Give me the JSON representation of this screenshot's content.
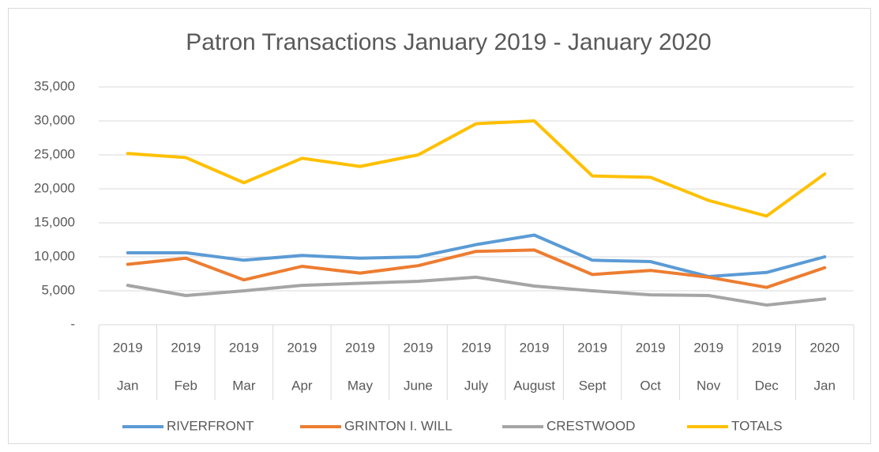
{
  "chart_data": {
    "type": "line",
    "title": "Patron Transactions January 2019 - January 2020",
    "categories": [
      "Jan",
      "Feb",
      "Mar",
      "Apr",
      "May",
      "June",
      "July",
      "August",
      "Sept",
      "Oct",
      "Nov",
      "Dec",
      "Jan"
    ],
    "category_years": [
      "2019",
      "2019",
      "2019",
      "2019",
      "2019",
      "2019",
      "2019",
      "2019",
      "2019",
      "2019",
      "2019",
      "2019",
      "2020"
    ],
    "series": [
      {
        "name": "RIVERFRONT",
        "color": "#5b9bd5",
        "values": [
          10600,
          10600,
          9500,
          10200,
          9800,
          10000,
          11800,
          13200,
          9500,
          9300,
          7100,
          7700,
          10000
        ]
      },
      {
        "name": "GRINTON I. WILL",
        "color": "#ed7d31",
        "values": [
          8900,
          9800,
          6600,
          8600,
          7600,
          8700,
          10800,
          11000,
          7400,
          8000,
          7000,
          5500,
          8400
        ]
      },
      {
        "name": "CRESTWOOD",
        "color": "#a5a5a5",
        "values": [
          5800,
          4300,
          5000,
          5800,
          6100,
          6400,
          7000,
          5700,
          5000,
          4400,
          4300,
          2900,
          3800
        ]
      },
      {
        "name": "TOTALS",
        "color": "#ffc000",
        "values": [
          25200,
          24600,
          20900,
          24500,
          23300,
          25000,
          29600,
          30000,
          21900,
          21700,
          18300,
          16000,
          22200
        ]
      }
    ],
    "ylim": [
      0,
      35000
    ],
    "yticks": [
      {
        "value": 0,
        "label": "-"
      },
      {
        "value": 5000,
        "label": "5,000"
      },
      {
        "value": 10000,
        "label": "10,000"
      },
      {
        "value": 15000,
        "label": "15,000"
      },
      {
        "value": 20000,
        "label": "20,000"
      },
      {
        "value": 25000,
        "label": "25,000"
      },
      {
        "value": 30000,
        "label": "30,000"
      },
      {
        "value": 35000,
        "label": "35,000"
      }
    ],
    "grid": true,
    "legend": "bottom"
  }
}
